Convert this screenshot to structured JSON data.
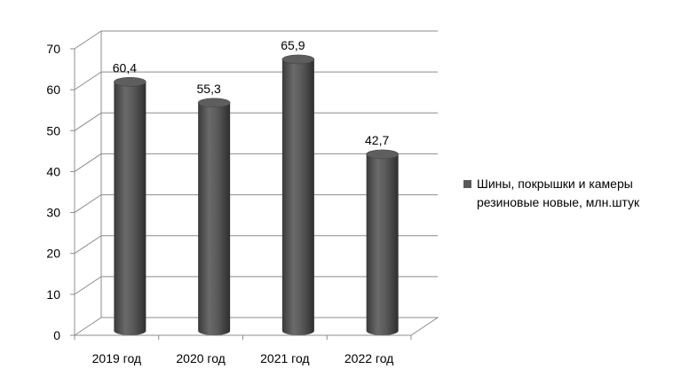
{
  "chart_data": {
    "type": "bar",
    "style": "3d-cylinder",
    "categories": [
      "2019 год",
      "2020 год",
      "2021 год",
      "2022 год"
    ],
    "series": [
      {
        "name": "Шины, покрышки и камеры резиновые новые, млн.штук",
        "values": [
          60.4,
          55.3,
          65.9,
          42.7
        ],
        "data_labels": [
          "60,4",
          "55,3",
          "65,9",
          "42,7"
        ],
        "color": "#595959"
      }
    ],
    "y_ticks": [
      "0",
      "10",
      "20",
      "30",
      "40",
      "50",
      "60",
      "70"
    ],
    "ylim": [
      0,
      70
    ],
    "grid": true,
    "legend_position": "right",
    "title": "",
    "xlabel": "",
    "ylabel": ""
  }
}
